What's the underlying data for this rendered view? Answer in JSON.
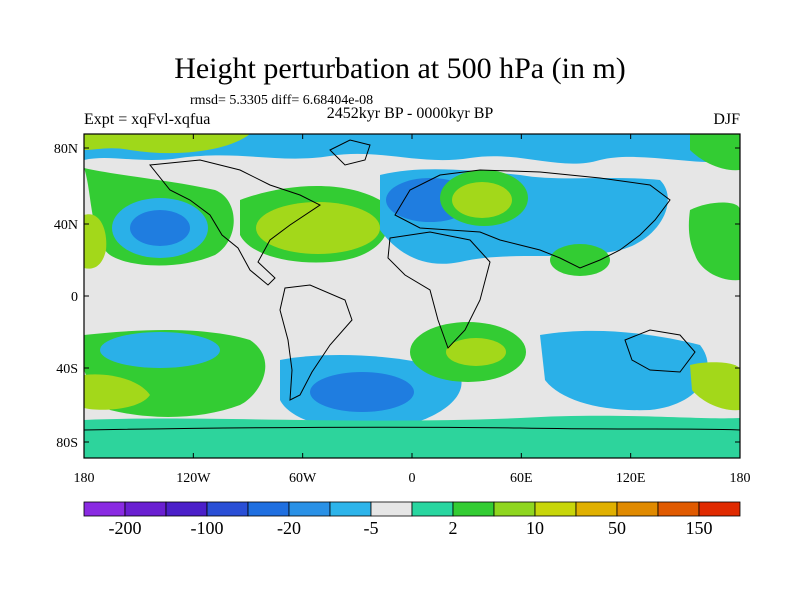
{
  "title": "Height perturbation at 500 hPa (in m)",
  "stats": "rmsd= 5.3305 diff= 6.68404e-08",
  "expt": "Expt = xqFvl-xqfua",
  "period": "2452kyr BP - 0000kyr BP",
  "season": "DJF",
  "lat_ticks": [
    "80N",
    "40N",
    "0",
    "40S",
    "80S"
  ],
  "lon_ticks": [
    "180",
    "120W",
    "60W",
    "0",
    "60E",
    "120E",
    "180"
  ],
  "colorbar": {
    "colors": [
      "#8a2be2",
      "#6a1fd1",
      "#4b1fc9",
      "#2a4fd6",
      "#1f6fe0",
      "#2a91e6",
      "#2db4ea",
      "#e6e6e6",
      "#29d6a0",
      "#33cc33",
      "#8fd61f",
      "#c8d60a",
      "#e0b000",
      "#e08a00",
      "#e05a00",
      "#e02a00"
    ],
    "labels": [
      "-200",
      "-100",
      "-20",
      "-5",
      "2",
      "10",
      "50",
      "150"
    ]
  }
}
